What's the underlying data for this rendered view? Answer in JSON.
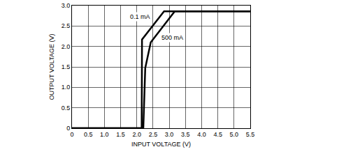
{
  "chart_data": {
    "type": "line",
    "x_label": "INPUT VOLTAGE (V)",
    "y_label": "OUTPUT VOLTAGE (V)",
    "xlim": [
      0,
      5.5
    ],
    "ylim": [
      0,
      3.0
    ],
    "xticks": [
      0,
      0.5,
      {
        "value": 1,
        "label": "1.0"
      },
      1.5,
      {
        "value": 2,
        "label": "2.0"
      },
      2.5,
      {
        "value": 3,
        "label": "3.0"
      },
      3.5,
      {
        "value": 4,
        "label": "4.0"
      },
      4.5,
      {
        "value": 5,
        "label": "5.0"
      },
      5.5
    ],
    "yticks": [
      0,
      0.5,
      {
        "value": 1,
        "label": "1.0"
      },
      1.5,
      {
        "value": 2,
        "label": "2.0"
      },
      2.5,
      {
        "value": 3,
        "label": "3.0"
      }
    ],
    "grid": true,
    "series": [
      {
        "name": "0.1 mA",
        "color": "#000000",
        "x": [
          0,
          2.15,
          2.16,
          2.84,
          5.5
        ],
        "values": [
          0,
          0,
          2.17,
          2.86,
          2.86
        ]
      },
      {
        "name": "500 mA",
        "color": "#000000",
        "x": [
          0,
          2.2,
          2.26,
          2.43,
          3.17,
          5.5
        ],
        "values": [
          0,
          0,
          1.47,
          2.1,
          2.86,
          2.86
        ]
      }
    ],
    "annotations": [
      {
        "text": "0.1 mA",
        "x": 2.1,
        "y": 2.72
      },
      {
        "text": "500 mA",
        "x": 3.1,
        "y": 2.22
      }
    ]
  }
}
